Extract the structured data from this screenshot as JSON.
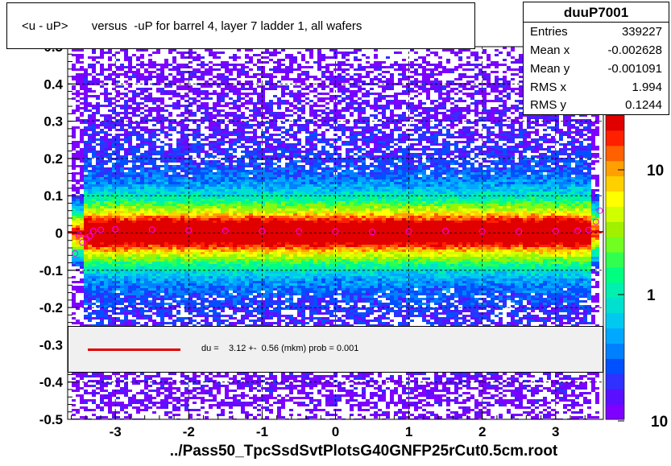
{
  "title": "<u - uP>       versus  -uP for barrel 4, layer 7 ladder 1, all wafers",
  "stats": {
    "name": "duuP7001",
    "rows": [
      {
        "label": "Entries",
        "value": "339227"
      },
      {
        "label": "Mean x",
        "value": "-0.002628"
      },
      {
        "label": "Mean y",
        "value": "-0.001091"
      },
      {
        "label": "RMS x",
        "value": "1.994"
      },
      {
        "label": "RMS y",
        "value": "0.1244"
      }
    ]
  },
  "legend": {
    "fit_text": "du =    3.12 +-  0.56 (mkm) prob = 0.001",
    "line_color": "#e00000"
  },
  "footer": "../Pass50_TpcSsdSvtPlotsG40GNFP25rCut0.5cm.root",
  "chart_data": {
    "type": "heatmap",
    "xlim": [
      -3.65,
      3.65
    ],
    "ylim": [
      -0.5,
      0.5
    ],
    "x_ticks": [
      "-3",
      "-2",
      "-1",
      "0",
      "1",
      "2",
      "3"
    ],
    "y_ticks": [
      "-0.5",
      "-0.4",
      "-0.3",
      "-0.2",
      "-0.1",
      "0",
      "0.1",
      "0.2",
      "0.3",
      "0.4",
      "0.5"
    ],
    "y_tick_display": [
      "-0.5",
      "-0.4",
      "-0.3",
      "-0.2",
      "-0.1",
      "0",
      "0.1",
      "0.2",
      "0.3",
      "0.4",
      "0.5"
    ],
    "grid": true,
    "colorbar": {
      "labels": [
        "1",
        "10",
        "10"
      ],
      "scale": "log"
    },
    "profile": {
      "x": [
        -3.55,
        -3.5,
        -3.45,
        -3.4,
        -3.35,
        -3.3,
        -3.2,
        -3.0,
        -2.5,
        -2.0,
        -1.5,
        -1.0,
        -0.5,
        0.0,
        0.5,
        1.0,
        1.5,
        2.0,
        2.5,
        3.0,
        3.3,
        3.45,
        3.55,
        3.6
      ],
      "y": [
        -0.055,
        -0.005,
        -0.025,
        -0.015,
        -0.008,
        0.005,
        0.008,
        0.01,
        0.009,
        0.007,
        0.006,
        0.005,
        0.004,
        0.004,
        0.003,
        0.004,
        0.005,
        0.004,
        0.004,
        0.005,
        0.006,
        0.008,
        0.03,
        0.06
      ]
    },
    "fit": {
      "type": "constant",
      "value": 0.00312
    }
  }
}
